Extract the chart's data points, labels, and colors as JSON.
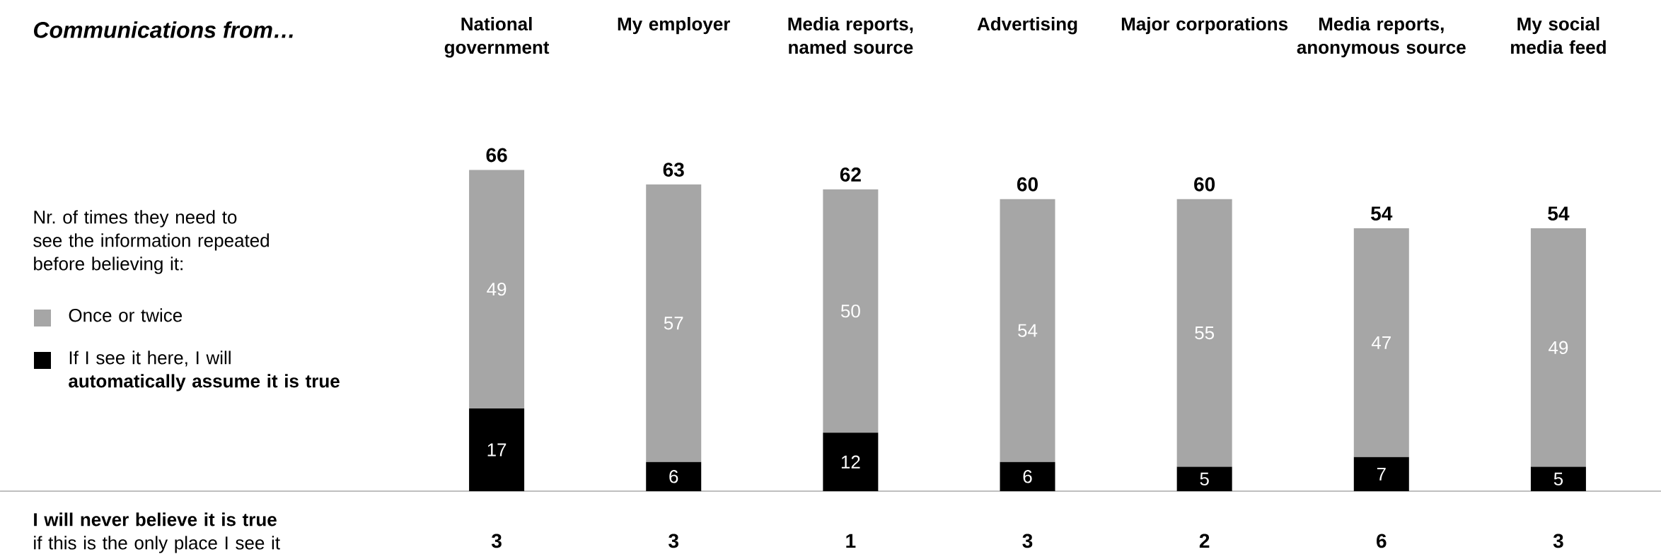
{
  "chart_data": {
    "type": "bar",
    "stacked": true,
    "title": "Communications from…",
    "categories": [
      "National government",
      "My employer",
      "Media reports, named source",
      "Advertising",
      "Major corporations",
      "Media reports, anonymous source",
      "My social media feed"
    ],
    "series": [
      {
        "name": "If I see it here, I will **automatically assume it is true**",
        "color": "#000000",
        "values": [
          17,
          6,
          12,
          6,
          5,
          7,
          5
        ]
      },
      {
        "name": "Once or twice",
        "color": "#a6a6a6",
        "values": [
          49,
          57,
          50,
          54,
          55,
          47,
          49
        ]
      }
    ],
    "legend_title": "Nr. of times they need to see the information repeated before believing it:",
    "legend": "left",
    "data_labels": true,
    "totals": [
      "66",
      "63",
      "62",
      "60",
      "60",
      "54",
      "54"
    ],
    "annotations": [
      "**I will never believe it is true** if this is the only place I see it",
      "3",
      "3",
      "1",
      "3",
      "2",
      "6",
      "3"
    ]
  }
}
